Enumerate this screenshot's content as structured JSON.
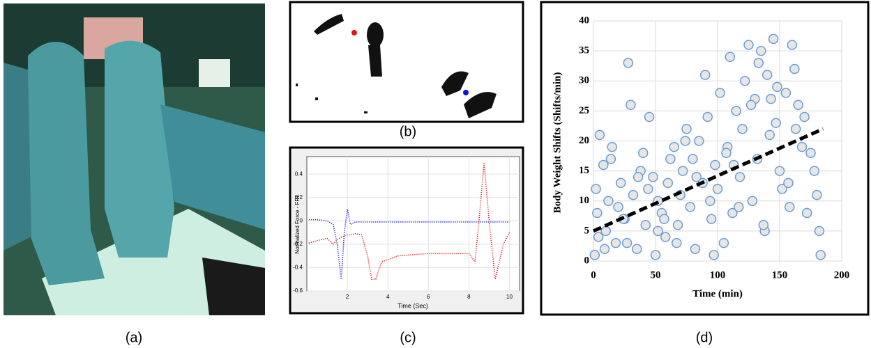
{
  "panels": {
    "a": "(a)",
    "b": "(b)",
    "c": "(c)",
    "d": "(d)"
  },
  "chart_data": [
    {
      "type": "line",
      "xlabel": "Time (Sec)",
      "ylabel": "Normalized Force - FRL",
      "x": [
        0.1,
        0.5,
        1.0,
        1.3,
        1.5,
        1.7,
        1.85,
        2.0,
        2.15,
        2.4,
        2.7,
        3.0,
        3.2,
        3.4,
        3.7,
        4.5,
        6,
        8,
        8.3,
        8.5,
        8.75,
        9.0,
        9.3,
        9.7,
        10
      ],
      "series": [
        {
          "color": "#1f1fe0",
          "values": [
            0.01,
            0.01,
            0.0,
            -0.03,
            -0.2,
            -0.5,
            -0.1,
            0.1,
            -0.03,
            -0.01,
            -0.01,
            -0.01,
            -0.01,
            -0.01,
            -0.01,
            -0.01,
            -0.01,
            -0.01,
            -0.01,
            -0.01,
            -0.01,
            -0.01,
            -0.01,
            -0.01,
            -0.01
          ]
        },
        {
          "color": "#e01f1f",
          "values": [
            -0.19,
            -0.17,
            -0.15,
            -0.2,
            -0.16,
            -0.14,
            -0.13,
            -0.12,
            -0.12,
            -0.11,
            -0.12,
            -0.3,
            -0.5,
            -0.5,
            -0.35,
            -0.3,
            -0.28,
            -0.28,
            -0.35,
            0.0,
            0.5,
            0.0,
            -0.5,
            -0.2,
            -0.1
          ]
        }
      ],
      "xlim": [
        0,
        10.5
      ],
      "xticks": [
        2,
        4,
        6,
        8,
        10
      ],
      "ylim": [
        -0.6,
        0.55
      ],
      "yticks": [
        -0.6,
        -0.4,
        -0.2,
        0,
        0.2,
        0.4
      ],
      "grid": true
    },
    {
      "type": "scatter",
      "xlabel": "Time (min)",
      "ylabel": "Body Weight Shifts (Shifts/min)",
      "color": "#6b9bd6",
      "x": [
        1,
        3,
        5,
        2,
        8,
        10,
        12,
        15,
        18,
        20,
        22,
        25,
        28,
        30,
        32,
        35,
        38,
        40,
        42,
        45,
        48,
        50,
        52,
        55,
        58,
        60,
        62,
        65,
        68,
        70,
        72,
        75,
        78,
        80,
        82,
        85,
        88,
        90,
        92,
        95,
        98,
        100,
        102,
        105,
        108,
        110,
        112,
        115,
        118,
        120,
        122,
        125,
        128,
        130,
        132,
        135,
        138,
        140,
        142,
        145,
        148,
        150,
        152,
        155,
        158,
        160,
        162,
        165,
        168,
        170,
        175,
        178,
        180,
        182,
        4,
        14,
        27,
        44,
        57,
        67,
        83,
        97,
        107,
        117,
        127,
        137,
        147,
        157,
        172,
        183,
        9,
        24,
        36,
        52,
        74,
        94,
        113,
        133,
        143,
        163
      ],
      "y": [
        1,
        8,
        21,
        12,
        16,
        5,
        10,
        19,
        3,
        9,
        13,
        7,
        33,
        26,
        11,
        2,
        15,
        18,
        6,
        24,
        14,
        1,
        10,
        8,
        4,
        13,
        17,
        19,
        6,
        11,
        15,
        22,
        9,
        17,
        2,
        20,
        13,
        31,
        24,
        7,
        16,
        12,
        28,
        3,
        19,
        34,
        8,
        25,
        14,
        22,
        30,
        36,
        10,
        27,
        17,
        35,
        5,
        31,
        21,
        37,
        29,
        15,
        12,
        28,
        9,
        36,
        32,
        26,
        19,
        24,
        18,
        15,
        11,
        5,
        4,
        17,
        3,
        12,
        7,
        3,
        14,
        1,
        18,
        9,
        26,
        6,
        23,
        13,
        8,
        1,
        2,
        7,
        14,
        5,
        20,
        10,
        16,
        33,
        27,
        22
      ],
      "trendline": {
        "x": [
          0,
          185
        ],
        "y": [
          5,
          22
        ]
      },
      "xlim": [
        0,
        200
      ],
      "xticks": [
        0,
        50,
        100,
        150,
        200
      ],
      "ylim": [
        0,
        40
      ],
      "yticks": [
        0,
        5,
        10,
        15,
        20,
        25,
        30,
        35,
        40
      ],
      "grid": true
    }
  ]
}
